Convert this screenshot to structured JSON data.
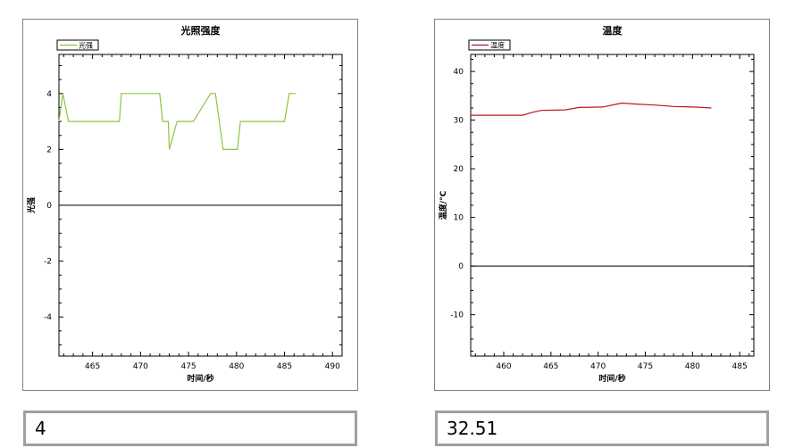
{
  "chart_data": [
    {
      "type": "line",
      "title": "光照强度",
      "xlabel": "时间/秒",
      "ylabel": "光强",
      "xlim": [
        461.5,
        491
      ],
      "ylim": [
        -5.4,
        5.4
      ],
      "xticks": [
        465,
        470,
        475,
        480,
        485,
        490
      ],
      "yticks": [
        -4,
        -2,
        0,
        2,
        4
      ],
      "ytick_labels": [
        "-4",
        "-2",
        "0",
        "2",
        "4"
      ],
      "grid": false,
      "legend": "top-left",
      "series": [
        {
          "name": "光强",
          "color": "#8cc63f",
          "x": [
            461.5,
            461.9,
            462.5,
            467.8,
            468.0,
            472.0,
            472.3,
            472.9,
            473.0,
            473.8,
            475.5,
            477.3,
            477.8,
            478.6,
            479.1,
            480.1,
            480.4,
            485.0,
            485.5,
            486.2
          ],
          "y": [
            3,
            4,
            3,
            3,
            4,
            4,
            3,
            3,
            2,
            3,
            3,
            4,
            4,
            2,
            2,
            2,
            3,
            3,
            4,
            4
          ]
        }
      ],
      "hline": 0
    },
    {
      "type": "line",
      "title": "温度",
      "xlabel": "时间/秒",
      "ylabel": "温度/°C",
      "xlim": [
        456.5,
        486.5
      ],
      "ylim": [
        -18.5,
        43.5
      ],
      "xticks": [
        460,
        465,
        470,
        475,
        480,
        485
      ],
      "yticks": [
        -10,
        0,
        10,
        20,
        30,
        40
      ],
      "ytick_labels": [
        "-10",
        "0",
        "10",
        "20",
        "30",
        "40"
      ],
      "grid": false,
      "legend": "top-left",
      "series": [
        {
          "name": "温度",
          "color": "#c0141e",
          "x": [
            456.5,
            462.0,
            463.0,
            464.0,
            466.5,
            468.0,
            470.5,
            472.5,
            474.0,
            476.0,
            478.0,
            480.0,
            481.0,
            482.0
          ],
          "y": [
            31.0,
            31.0,
            31.6,
            32.0,
            32.1,
            32.6,
            32.7,
            33.5,
            33.3,
            33.1,
            32.8,
            32.7,
            32.6,
            32.5
          ]
        }
      ],
      "hline": 0
    }
  ],
  "readouts": {
    "light_value": "4",
    "temp_value": "32.51"
  }
}
